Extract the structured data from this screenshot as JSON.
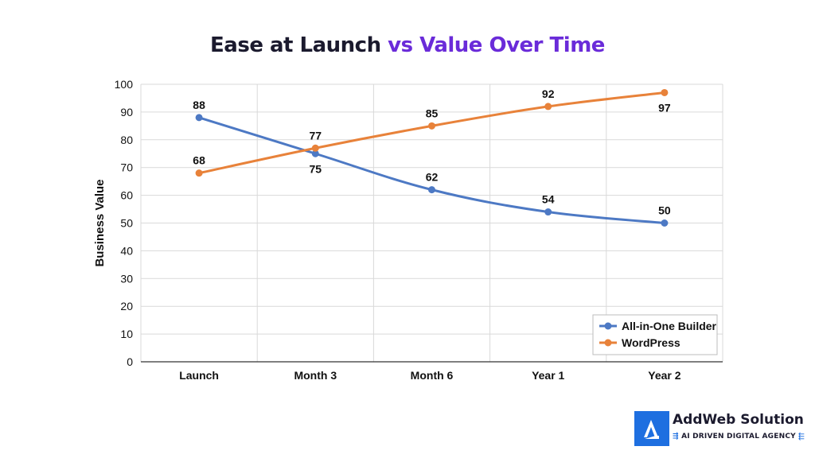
{
  "title": {
    "part1": "Ease at ",
    "part2": "Launch",
    "part3": " vs ",
    "part4": "Value Over Time"
  },
  "colors": {
    "title_dark": "#1b1a2e",
    "title_accent": "#6a2bd9",
    "series_1": "#4d79c4",
    "series_2": "#e8823a",
    "grid": "#d9d9d9",
    "brand_blue": "#1e6fe0"
  },
  "chart_data": {
    "type": "line",
    "title": "Ease at Launch vs Value Over Time",
    "xlabel": "",
    "ylabel": "Business Value",
    "categories": [
      "Launch",
      "Month 3",
      "Month 6",
      "Year 1",
      "Year 2"
    ],
    "ylim": [
      0,
      100
    ],
    "yticks": [
      0,
      10,
      20,
      30,
      40,
      50,
      60,
      70,
      80,
      90,
      100
    ],
    "grid": true,
    "legend_position": "bottom-right",
    "series": [
      {
        "name": "All-in-One Builder",
        "values": [
          88,
          75,
          62,
          54,
          50
        ],
        "label_placement": [
          "above",
          "below",
          "above",
          "above",
          "above"
        ]
      },
      {
        "name": "WordPress",
        "values": [
          68,
          77,
          85,
          92,
          97
        ],
        "label_placement": [
          "above",
          "above",
          "above",
          "above",
          "below"
        ]
      }
    ]
  },
  "brand": {
    "name": "AddWeb Solution",
    "tagline": "AI DRIVEN DIGITAL AGENCY",
    "logo_icon": "addweb-logo-icon"
  }
}
